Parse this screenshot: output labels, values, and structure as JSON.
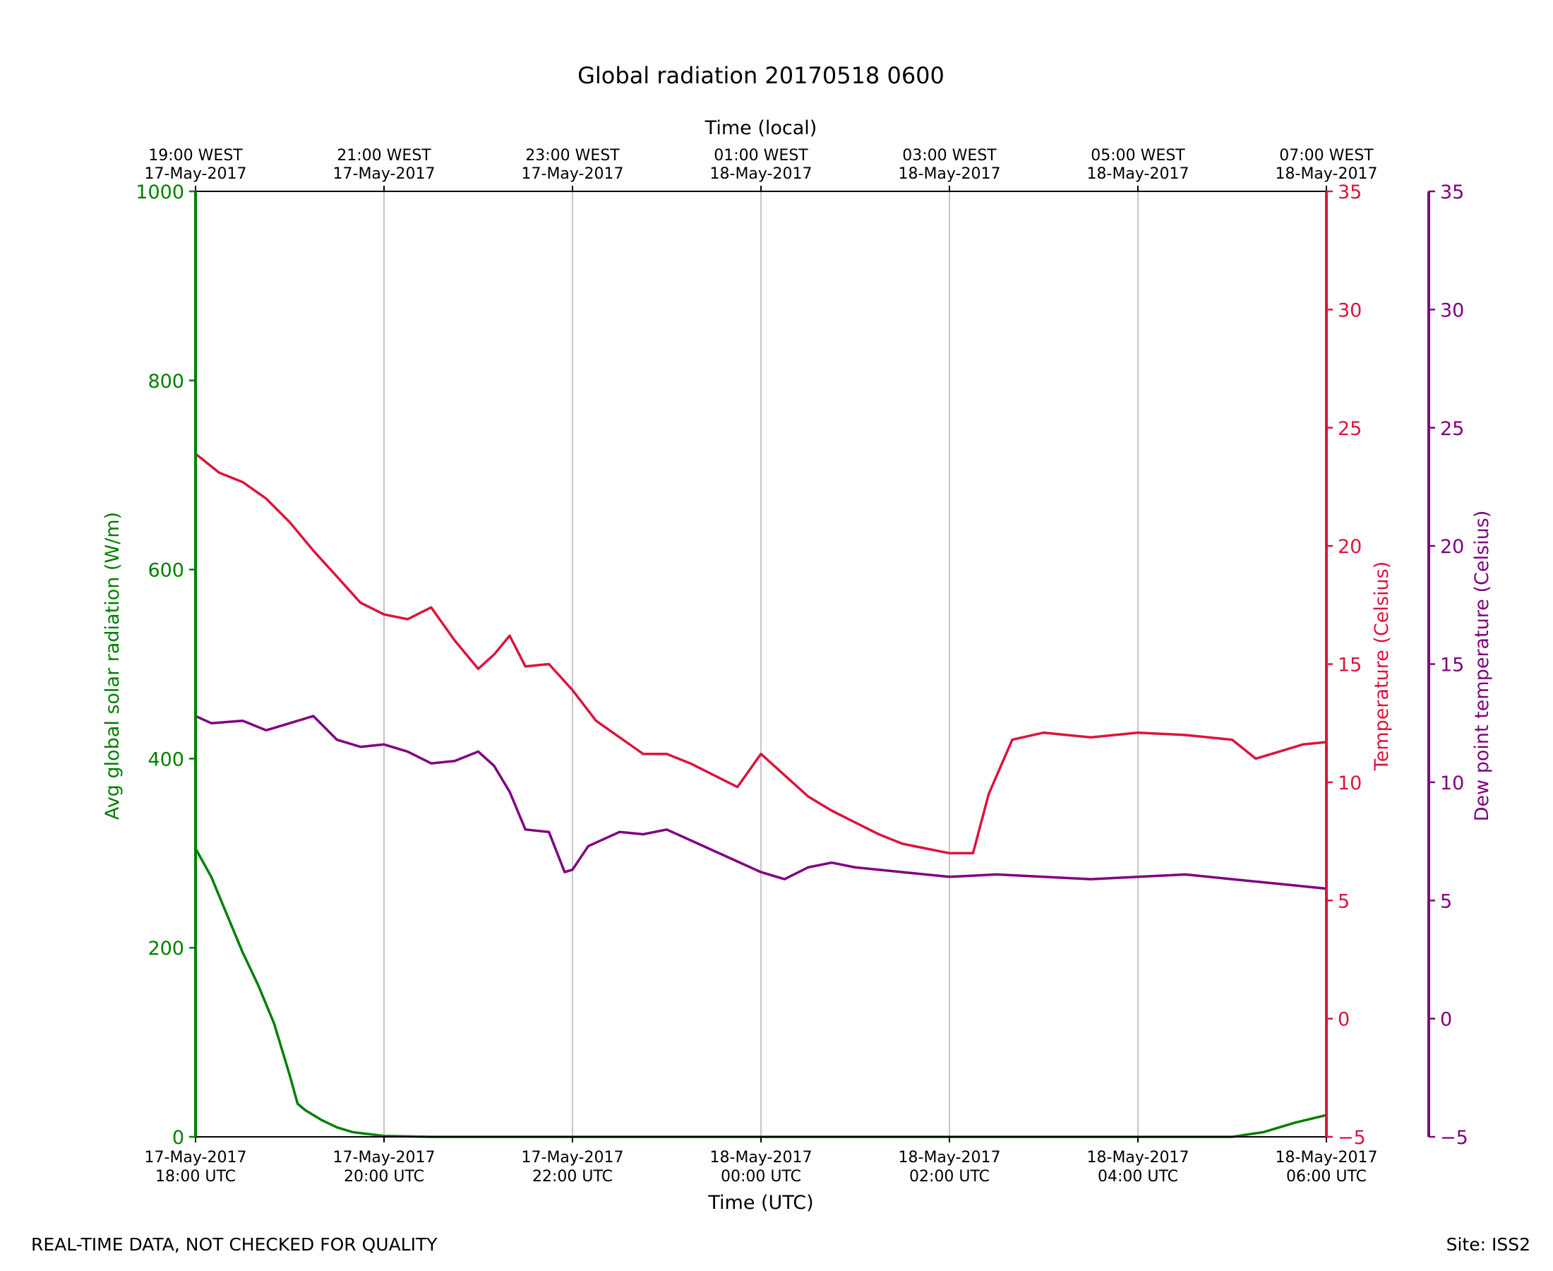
{
  "colors": {
    "radiation": "#008000",
    "temperature": "#dc143c",
    "dewpoint": "#800080",
    "grid": "#b0b0b0",
    "axis": "#000000"
  },
  "footer": {
    "left_note": "REAL-TIME DATA, NOT CHECKED FOR QUALITY",
    "site": "Site: ISS2"
  },
  "chart_data": {
    "type": "line",
    "title": "Global radiation 20170518 0600",
    "xlabel_bottom": "Time (UTC)",
    "xlabel_top": "Time (local)",
    "x_range_hours_utc": [
      0,
      12
    ],
    "grid": "vertical",
    "x_ticks_bottom": [
      {
        "date": "17-May-2017",
        "time": "18:00 UTC"
      },
      {
        "date": "17-May-2017",
        "time": "20:00 UTC"
      },
      {
        "date": "17-May-2017",
        "time": "22:00 UTC"
      },
      {
        "date": "18-May-2017",
        "time": "00:00 UTC"
      },
      {
        "date": "18-May-2017",
        "time": "02:00 UTC"
      },
      {
        "date": "18-May-2017",
        "time": "04:00 UTC"
      },
      {
        "date": "18-May-2017",
        "time": "06:00 UTC"
      }
    ],
    "x_ticks_top": [
      {
        "time": "19:00 WEST",
        "date": "17-May-2017"
      },
      {
        "time": "21:00 WEST",
        "date": "17-May-2017"
      },
      {
        "time": "23:00 WEST",
        "date": "17-May-2017"
      },
      {
        "time": "01:00 WEST",
        "date": "18-May-2017"
      },
      {
        "time": "03:00 WEST",
        "date": "18-May-2017"
      },
      {
        "time": "05:00 WEST",
        "date": "18-May-2017"
      },
      {
        "time": "07:00 WEST",
        "date": "18-May-2017"
      }
    ],
    "axes": {
      "radiation": {
        "label": "Avg global solar radiation (W/m)",
        "ylim": [
          0,
          1000
        ],
        "ticks": [
          "0",
          "200",
          "400",
          "600",
          "800",
          "1000"
        ]
      },
      "temperature": {
        "label": "Temperature (Celsius)",
        "ylim": [
          -5,
          35
        ],
        "ticks": [
          "−5",
          "0",
          "5",
          "10",
          "15",
          "20",
          "25",
          "30",
          "35"
        ]
      },
      "dewpoint": {
        "label": "Dew point temperature (Celsius)",
        "ylim": [
          -5,
          35
        ],
        "ticks": [
          "−5",
          "0",
          "5",
          "10",
          "15",
          "20",
          "25",
          "30",
          "35"
        ]
      }
    },
    "series": [
      {
        "key": "radiation",
        "x_time_utc": [
          "17-May-2017 18:00",
          "17-May-2017 18:10",
          "17-May-2017 18:20",
          "17-May-2017 18:30",
          "17-May-2017 18:40",
          "17-May-2017 18:50",
          "17-May-2017 19:00",
          "17-May-2017 19:05",
          "17-May-2017 19:10",
          "17-May-2017 19:20",
          "17-May-2017 19:30",
          "17-May-2017 19:40",
          "17-May-2017 20:00",
          "17-May-2017 20:30",
          "17-May-2017 22:00",
          "18-May-2017 00:00",
          "18-May-2017 02:00",
          "18-May-2017 04:00",
          "18-May-2017 05:00",
          "18-May-2017 05:20",
          "18-May-2017 05:40",
          "18-May-2017 06:00"
        ],
        "values": [
          305,
          275,
          235,
          195,
          160,
          120,
          65,
          35,
          28,
          18,
          10,
          5,
          1,
          0,
          0,
          0,
          0,
          0,
          0,
          5,
          15,
          23
        ]
      },
      {
        "key": "temperature",
        "x_time_utc": [
          "17-May-2017 18:00",
          "17-May-2017 18:15",
          "17-May-2017 18:30",
          "17-May-2017 18:45",
          "17-May-2017 19:00",
          "17-May-2017 19:15",
          "17-May-2017 19:30",
          "17-May-2017 19:45",
          "17-May-2017 20:00",
          "17-May-2017 20:15",
          "17-May-2017 20:30",
          "17-May-2017 20:45",
          "17-May-2017 21:00",
          "17-May-2017 21:10",
          "17-May-2017 21:20",
          "17-May-2017 21:30",
          "17-May-2017 21:45",
          "17-May-2017 22:00",
          "17-May-2017 22:15",
          "17-May-2017 22:30",
          "17-May-2017 22:45",
          "17-May-2017 23:00",
          "17-May-2017 23:15",
          "17-May-2017 23:30",
          "17-May-2017 23:45",
          "18-May-2017 00:00",
          "18-May-2017 00:15",
          "18-May-2017 00:30",
          "18-May-2017 00:45",
          "18-May-2017 01:00",
          "18-May-2017 01:15",
          "18-May-2017 01:30",
          "18-May-2017 01:45",
          "18-May-2017 02:00",
          "18-May-2017 02:15",
          "18-May-2017 02:25",
          "18-May-2017 02:40",
          "18-May-2017 03:00",
          "18-May-2017 03:30",
          "18-May-2017 04:00",
          "18-May-2017 04:30",
          "18-May-2017 05:00",
          "18-May-2017 05:15",
          "18-May-2017 05:30",
          "18-May-2017 05:45",
          "18-May-2017 06:00"
        ],
        "values": [
          23.9,
          23.1,
          22.7,
          22.0,
          21.0,
          19.8,
          18.7,
          17.6,
          17.1,
          16.9,
          17.4,
          16.0,
          14.8,
          15.4,
          16.2,
          14.9,
          15.0,
          13.9,
          12.6,
          11.9,
          11.2,
          11.2,
          10.8,
          10.3,
          9.8,
          11.2,
          10.3,
          9.4,
          8.8,
          8.3,
          7.8,
          7.4,
          7.2,
          7.0,
          7.0,
          9.5,
          11.8,
          12.1,
          11.9,
          12.1,
          12.0,
          11.8,
          11.0,
          11.3,
          11.6,
          11.7
        ]
      },
      {
        "key": "dewpoint",
        "x_time_utc": [
          "17-May-2017 18:00",
          "17-May-2017 18:10",
          "17-May-2017 18:30",
          "17-May-2017 18:45",
          "17-May-2017 19:00",
          "17-May-2017 19:15",
          "17-May-2017 19:30",
          "17-May-2017 19:45",
          "17-May-2017 20:00",
          "17-May-2017 20:15",
          "17-May-2017 20:30",
          "17-May-2017 20:45",
          "17-May-2017 21:00",
          "17-May-2017 21:10",
          "17-May-2017 21:20",
          "17-May-2017 21:30",
          "17-May-2017 21:45",
          "17-May-2017 21:55",
          "17-May-2017 22:00",
          "17-May-2017 22:10",
          "17-May-2017 22:30",
          "17-May-2017 22:45",
          "17-May-2017 23:00",
          "17-May-2017 23:20",
          "17-May-2017 23:40",
          "18-May-2017 00:00",
          "18-May-2017 00:15",
          "18-May-2017 00:30",
          "18-May-2017 00:45",
          "18-May-2017 01:00",
          "18-May-2017 01:30",
          "18-May-2017 02:00",
          "18-May-2017 02:30",
          "18-May-2017 03:00",
          "18-May-2017 03:30",
          "18-May-2017 04:00",
          "18-May-2017 04:30",
          "18-May-2017 05:00",
          "18-May-2017 05:30",
          "18-May-2017 06:00"
        ],
        "values": [
          12.8,
          12.5,
          12.6,
          12.2,
          12.5,
          12.8,
          11.8,
          11.5,
          11.6,
          11.3,
          10.8,
          10.9,
          11.3,
          10.7,
          9.6,
          8.0,
          7.9,
          6.2,
          6.3,
          7.3,
          7.9,
          7.8,
          8.0,
          7.4,
          6.8,
          6.2,
          5.9,
          6.4,
          6.6,
          6.4,
          6.2,
          6.0,
          6.1,
          6.0,
          5.9,
          6.0,
          6.1,
          5.9,
          5.7,
          5.5
        ]
      }
    ]
  }
}
